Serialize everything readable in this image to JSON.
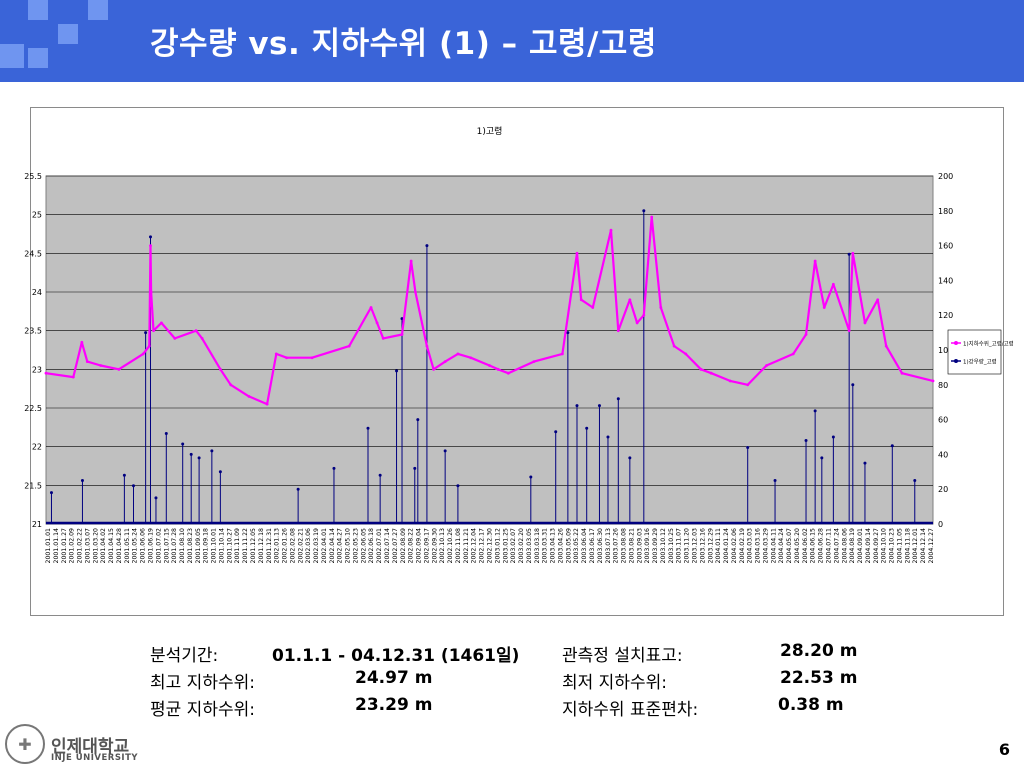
{
  "slide": {
    "title": "강수량 vs. 지하수위 (1) – 고령/고령",
    "page_number": "6",
    "colors": {
      "header": "#3a64d8",
      "header_squares": "#6f95f0",
      "plot_bg": "#c0c0c0",
      "gw_line": "#ff00ff",
      "rain_line": "#000080"
    }
  },
  "stats": {
    "period_label": "분석기간:",
    "period_value": "01.1.1 - 04.12.31 (1461일)",
    "elev_label": "관측정 설치표고:",
    "elev_value": "28.20 m",
    "max_label": "최고 지하수위:",
    "max_value": "24.97 m",
    "min_label": "최저 지하수위:",
    "min_value": "22.53 m",
    "mean_label": "평균 지하수위:",
    "mean_value": "23.29 m",
    "std_label": "지하수위 표준편차:",
    "std_value": "0.38 m"
  },
  "logo": {
    "name_kr": "인제대학교",
    "name_en": "INJE UNIVERSITY",
    "seal_icon": "university-seal-icon"
  },
  "chart_data": {
    "type": "line",
    "title": "1)고령",
    "left_axis": {
      "min": 21,
      "max": 25.5,
      "ticks": [
        "21",
        "21.5",
        "22",
        "22.5",
        "23",
        "23.5",
        "24",
        "24.5",
        "25",
        "25.5"
      ]
    },
    "right_axis": {
      "min": 0,
      "max": 200,
      "ticks": [
        "0",
        "20",
        "40",
        "60",
        "80",
        "100",
        "120",
        "140",
        "160",
        "180",
        "200"
      ]
    },
    "grid": true,
    "legend_position": "right",
    "legend": [
      "1)지하수위_고령/고령",
      "1)강우량_고령"
    ],
    "x_start": "2001-01-01",
    "x_step_days": 13,
    "x_tick_count": 113,
    "series": [
      {
        "name": "1)지하수위_고령/고령",
        "axis": "left",
        "color": "#ff00ff",
        "x": [
          "2001-01-01",
          "2001-02-15",
          "2001-03-01",
          "2001-03-10",
          "2001-04-01",
          "2001-05-01",
          "2001-06-10",
          "2001-06-20",
          "2001-06-22",
          "2001-06-23",
          "2001-06-27",
          "2001-07-10",
          "2001-08-01",
          "2001-09-05",
          "2001-09-15",
          "2001-10-15",
          "2001-11-01",
          "2001-12-01",
          "2001-12-31",
          "2002-01-15",
          "2002-02-01",
          "2002-03-15",
          "2002-05-15",
          "2002-06-20",
          "2002-06-30",
          "2002-07-10",
          "2002-08-10",
          "2002-08-25",
          "2002-09-01",
          "2002-09-20",
          "2002-10-01",
          "2002-10-20",
          "2002-11-10",
          "2002-12-01",
          "2003-01-01",
          "2003-01-15",
          "2003-02-01",
          "2003-03-15",
          "2003-05-01",
          "2003-05-25",
          "2003-06-01",
          "2003-06-20",
          "2003-07-20",
          "2003-08-01",
          "2003-08-20",
          "2003-09-01",
          "2003-09-12",
          "2003-09-25",
          "2003-10-10",
          "2003-11-01",
          "2003-11-20",
          "2003-12-15",
          "2004-01-01",
          "2004-02-01",
          "2004-03-01",
          "2004-04-01",
          "2004-05-15",
          "2004-06-05",
          "2004-06-20",
          "2004-07-05",
          "2004-07-20",
          "2004-08-15",
          "2004-08-21",
          "2004-09-10",
          "2004-10-01",
          "2004-10-15",
          "2004-11-10",
          "2004-12-31"
        ],
        "y": [
          22.95,
          22.9,
          23.35,
          23.1,
          23.05,
          23.0,
          23.2,
          23.3,
          24.6,
          24.0,
          23.5,
          23.6,
          23.4,
          23.5,
          23.4,
          23.0,
          22.8,
          22.65,
          22.55,
          23.2,
          23.15,
          23.15,
          23.3,
          23.8,
          23.6,
          23.4,
          23.45,
          24.4,
          24.0,
          23.3,
          23.0,
          23.1,
          23.2,
          23.15,
          23.05,
          23.0,
          22.95,
          23.1,
          23.2,
          24.5,
          23.9,
          23.8,
          24.8,
          23.5,
          23.9,
          23.6,
          23.7,
          24.97,
          23.8,
          23.3,
          23.2,
          23.0,
          22.95,
          22.85,
          22.8,
          23.05,
          23.2,
          23.45,
          24.4,
          23.8,
          24.1,
          23.5,
          24.5,
          23.6,
          23.9,
          23.3,
          22.95,
          22.85
        ]
      },
      {
        "name": "1)강우량_고령",
        "axis": "right",
        "color": "#000080",
        "x": [
          "2001-01-10",
          "2001-03-02",
          "2001-05-10",
          "2001-05-25",
          "2001-06-14",
          "2001-06-22",
          "2001-07-01",
          "2001-07-18",
          "2001-08-14",
          "2001-08-28",
          "2001-09-10",
          "2001-10-01",
          "2001-10-15",
          "2002-02-20",
          "2002-04-20",
          "2002-06-15",
          "2002-07-05",
          "2002-08-01",
          "2002-08-10",
          "2002-08-31",
          "2002-09-05",
          "2002-09-20",
          "2002-10-20",
          "2002-11-10",
          "2003-03-10",
          "2003-04-20",
          "2003-05-10",
          "2003-05-25",
          "2003-06-10",
          "2003-07-01",
          "2003-07-15",
          "2003-08-01",
          "2003-08-20",
          "2003-09-12",
          "2004-03-01",
          "2004-04-15",
          "2004-06-05",
          "2004-06-20",
          "2004-07-01",
          "2004-07-20",
          "2004-08-15",
          "2004-08-21",
          "2004-09-10",
          "2004-10-25",
          "2004-12-01"
        ],
        "y": [
          18,
          25,
          28,
          22,
          110,
          165,
          15,
          52,
          46,
          40,
          38,
          42,
          30,
          20,
          32,
          55,
          28,
          88,
          118,
          32,
          60,
          160,
          42,
          22,
          27,
          53,
          110,
          68,
          55,
          68,
          50,
          72,
          38,
          180,
          44,
          25,
          48,
          65,
          38,
          50,
          155,
          80,
          35,
          45,
          25
        ]
      }
    ]
  }
}
